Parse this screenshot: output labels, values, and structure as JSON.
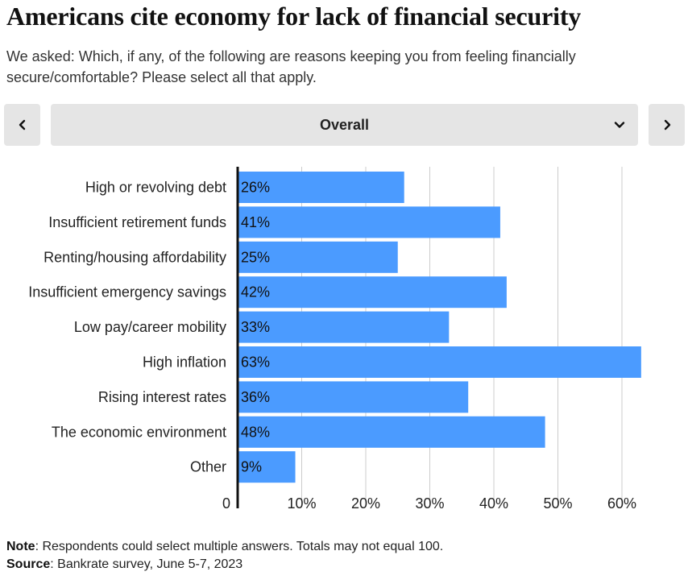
{
  "title": "Americans cite economy for lack of financial security",
  "subtitle": "We asked: Which, if any, of the following are reasons keeping you from feeling financially secure/comfortable? Please select all that apply.",
  "filter": {
    "prev_icon": "chevron-left-icon",
    "next_icon": "chevron-right-icon",
    "dropdown_icon": "chevron-down-icon",
    "selected": "Overall"
  },
  "colors": {
    "bar": "#4b9bff",
    "grid": "#cccccc",
    "axis": "#111111"
  },
  "chart_data": {
    "type": "bar",
    "orientation": "horizontal",
    "categories": [
      "High or revolving debt",
      "Insufficient retirement funds",
      "Renting/housing affordability",
      "Insufficient emergency savings",
      "Low pay/career mobility",
      "High inflation",
      "Rising interest rates",
      "The economic environment",
      "Other"
    ],
    "values": [
      26,
      41,
      25,
      42,
      33,
      63,
      36,
      48,
      9
    ],
    "data_labels": [
      "26%",
      "41%",
      "25%",
      "42%",
      "33%",
      "63%",
      "36%",
      "48%",
      "9%"
    ],
    "x_ticks": [
      0,
      10,
      20,
      30,
      40,
      50,
      60
    ],
    "x_tick_labels": [
      "0",
      "10%",
      "20%",
      "30%",
      "40%",
      "50%",
      "60%"
    ],
    "xlim": [
      0,
      65
    ],
    "grid": true,
    "legend": "none"
  },
  "notes": {
    "note_label": "Note",
    "note_text": ": Respondents could select multiple answers. Totals may not equal 100.",
    "source_label": "Source",
    "source_text": ": Bankrate survey, June 5-7, 2023"
  }
}
